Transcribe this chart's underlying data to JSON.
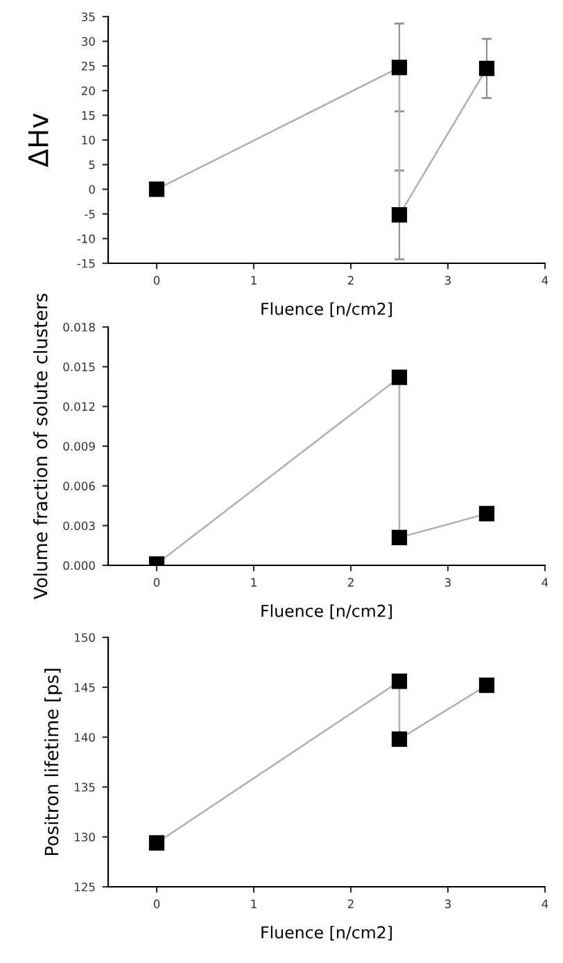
{
  "chart_data": [
    {
      "type": "line",
      "xlabel": "Fluence [n/cm2]",
      "ylabel": "ΔHv",
      "x": [
        0,
        2.5,
        2.5,
        3.4
      ],
      "marker": "square",
      "line_style": "solid",
      "grid": false,
      "legend": false,
      "series": [
        {
          "color": "#000000",
          "values": [
            0,
            24.7,
            -5.2,
            24.5
          ],
          "errors": [
            null,
            8.9,
            9,
            6
          ]
        }
      ],
      "xlim": [
        -0.5,
        4
      ],
      "xticks": [
        0,
        1,
        2,
        3,
        4
      ],
      "ylim": [
        -15,
        35
      ],
      "yticks": [
        -15,
        -10,
        -5,
        0,
        5,
        10,
        15,
        20,
        25,
        30,
        35
      ]
    },
    {
      "type": "line",
      "xlabel": "Fluence [n/cm2]",
      "ylabel": "Volume fraction of solute clusters",
      "x": [
        0,
        2.5,
        2.5,
        3.4
      ],
      "marker": "square",
      "line_style": "solid",
      "grid": false,
      "legend": false,
      "series": [
        {
          "color": "#000000",
          "values": [
            0.0001,
            0.0142,
            0.0021,
            0.0039
          ]
        }
      ],
      "xlim": [
        -0.5,
        4
      ],
      "xticks": [
        0,
        1,
        2,
        3,
        4
      ],
      "ylim": [
        0,
        0.018
      ],
      "yticks": [
        {
          "value": 0,
          "label": "0.000"
        },
        {
          "value": 0.003,
          "label": "0.003"
        },
        {
          "value": 0.006,
          "label": "0.006"
        },
        {
          "value": 0.009,
          "label": "0.009"
        },
        {
          "value": 0.012,
          "label": "0.012"
        },
        {
          "value": 0.015,
          "label": "0.015"
        },
        {
          "value": 0.018,
          "label": "0.018"
        }
      ]
    },
    {
      "type": "line",
      "xlabel": "Fluence [n/cm2]",
      "ylabel": "Positron lifetime [ps]",
      "x": [
        0,
        2.5,
        2.5,
        3.4
      ],
      "marker": "square",
      "line_style": "solid",
      "grid": false,
      "legend": false,
      "series": [
        {
          "color": "#000000",
          "values": [
            129.4,
            145.6,
            139.8,
            145.2
          ]
        }
      ],
      "xlim": [
        -0.5,
        4
      ],
      "xticks": [
        0,
        1,
        2,
        3,
        4
      ],
      "ylim": [
        125,
        150
      ],
      "yticks": [
        125,
        130,
        135,
        140,
        145,
        150
      ]
    }
  ]
}
